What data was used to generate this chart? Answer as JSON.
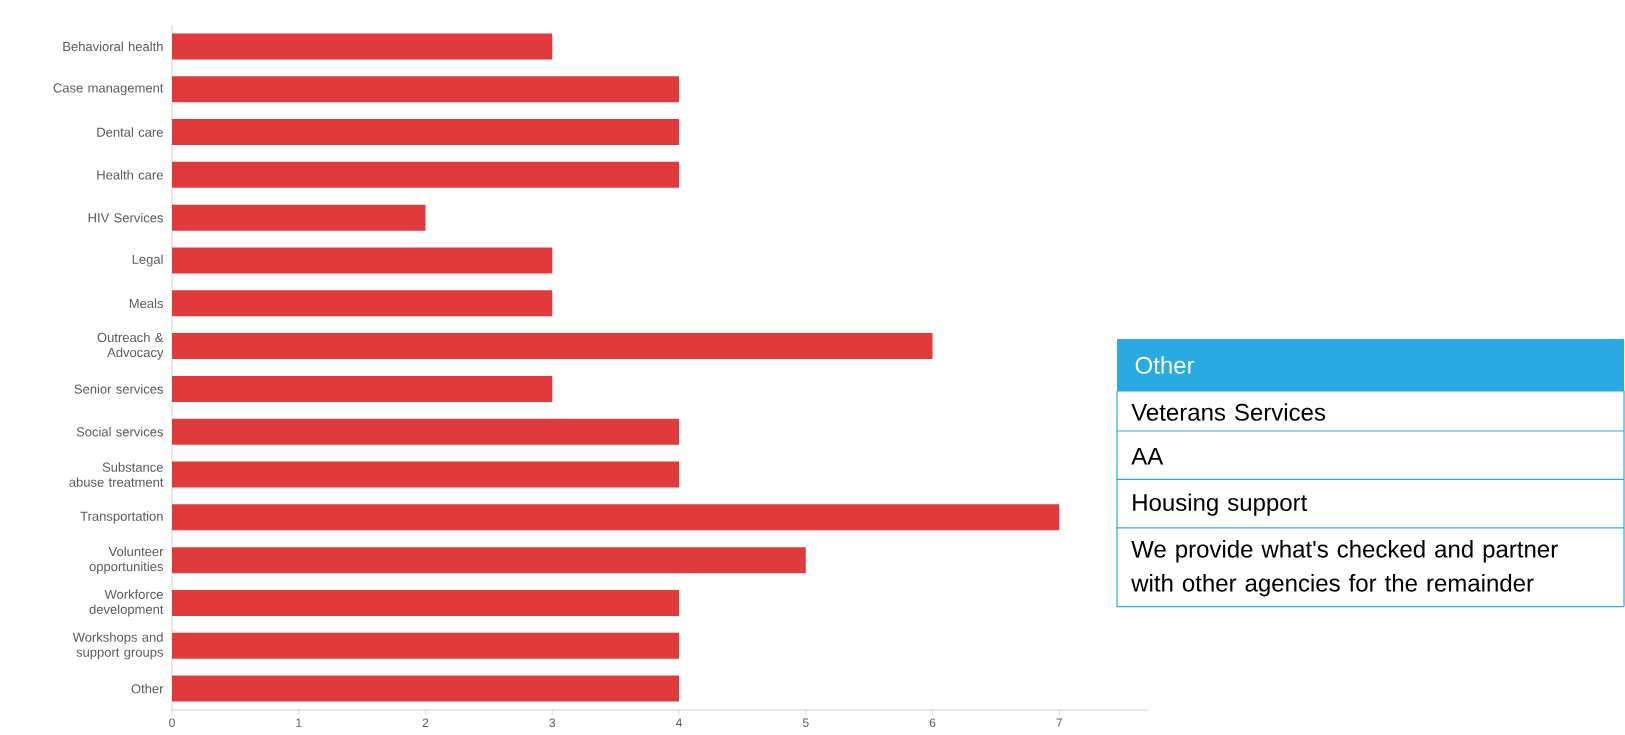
{
  "chart_data": [
    {
      "type": "bar",
      "orientation": "horizontal",
      "categories": [
        "Behavioral health",
        "Case management",
        "Dental care",
        "Health care",
        "HIV Services",
        "Legal",
        "Meals",
        "Outreach & Advocacy",
        "Senior services",
        "Social services",
        "Substance abuse treatment",
        "Transportation",
        "Volunteer opportunities",
        "Workforce development",
        "Workshops and support groups",
        "Other"
      ],
      "values": [
        3,
        4,
        4,
        4,
        2,
        3,
        3,
        6,
        3,
        4,
        4,
        7,
        5,
        4,
        4,
        4
      ],
      "color": "#e03a3c",
      "xlim": [
        0,
        7.7
      ],
      "xticks": [
        0,
        1,
        2,
        3,
        4,
        5,
        6,
        7
      ],
      "grid": false
    },
    {
      "type": "other",
      "title": "Other",
      "annotations": [
        "Veterans Services",
        "AA",
        "Housing support",
        "We provide what's checked and partner with other agencies for the remainder"
      ]
    }
  ]
}
